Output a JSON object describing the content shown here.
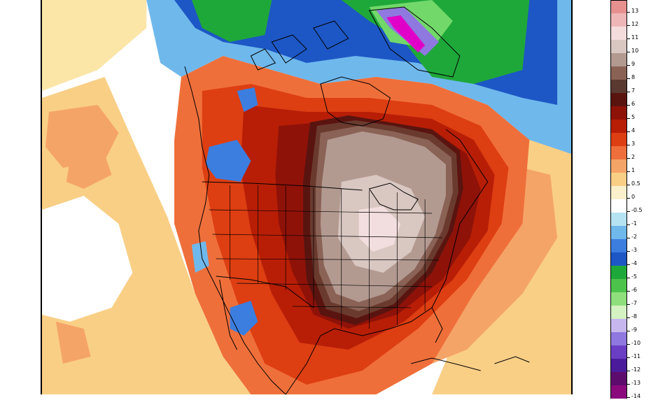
{
  "map": {
    "region": "north-america",
    "colors": {
      "background": "#ffffff",
      "coastline": "#000000",
      "warm_05": "#fbe6a8",
      "warm_1": "#f9cf86",
      "warm_2": "#f5a468",
      "warm_3": "#ef6f3a",
      "warm_4": "#dd3e12",
      "warm_5": "#b81e06",
      "warm_6": "#8f1208",
      "warm_7": "#5a1410",
      "warm_8": "#6b3a2e",
      "warm_9": "#8a6256",
      "warm_10": "#b39a91",
      "warm_11": "#d9c7c1",
      "warm_12": "#f2dede",
      "warm_13": "#efb6b8",
      "cool_05": "#b6e3f2",
      "cool_1": "#6fb8ec",
      "cool_2": "#3b7ee0",
      "cool_3": "#1d57c5",
      "cool_4": "#1fa83a",
      "cool_6": "#72d86a",
      "cool_8": "#c6b8ef",
      "cool_9": "#8f78df",
      "cool_10": "#6a3fc4",
      "cool_12": "#b8159e",
      "cool_14": "#e000c8"
    }
  },
  "colorbar": {
    "items": [
      {
        "label": "13",
        "color": "#e79090"
      },
      {
        "label": "12",
        "color": "#efb6b8"
      },
      {
        "label": "11",
        "color": "#f4dcdc"
      },
      {
        "label": "10",
        "color": "#d9c7c1"
      },
      {
        "label": "9",
        "color": "#b39a91"
      },
      {
        "label": "8",
        "color": "#8a6256"
      },
      {
        "label": "7",
        "color": "#5a3a30"
      },
      {
        "label": "6",
        "color": "#5a1410"
      },
      {
        "label": "5",
        "color": "#8f1208"
      },
      {
        "label": "4",
        "color": "#b81e06"
      },
      {
        "label": "3",
        "color": "#dd3e12"
      },
      {
        "label": "2",
        "color": "#ef6f3a"
      },
      {
        "label": "1",
        "color": "#f5a468"
      },
      {
        "label": "0.5",
        "color": "#f9cf86"
      },
      {
        "label": "0",
        "color": "#fbf0cc"
      },
      {
        "label": "-0.5",
        "color": "#ffffff"
      },
      {
        "label": "-1",
        "color": "#b6e3f2"
      },
      {
        "label": "-2",
        "color": "#6fb8ec"
      },
      {
        "label": "-3",
        "color": "#3b7ee0"
      },
      {
        "label": "-4",
        "color": "#1d57c5"
      },
      {
        "label": "-5",
        "color": "#1fa83a"
      },
      {
        "label": "-6",
        "color": "#4cc44c"
      },
      {
        "label": "-7",
        "color": "#8fe07c"
      },
      {
        "label": "-8",
        "color": "#d5f2c2"
      },
      {
        "label": "-9",
        "color": "#c6b8ef"
      },
      {
        "label": "-10",
        "color": "#8f78df"
      },
      {
        "label": "-11",
        "color": "#6a3fc4"
      },
      {
        "label": "-12",
        "color": "#4a1c9c"
      },
      {
        "label": "-13",
        "color": "#5e0b6e"
      },
      {
        "label": "-14",
        "color": "#8a0a7e"
      }
    ]
  }
}
